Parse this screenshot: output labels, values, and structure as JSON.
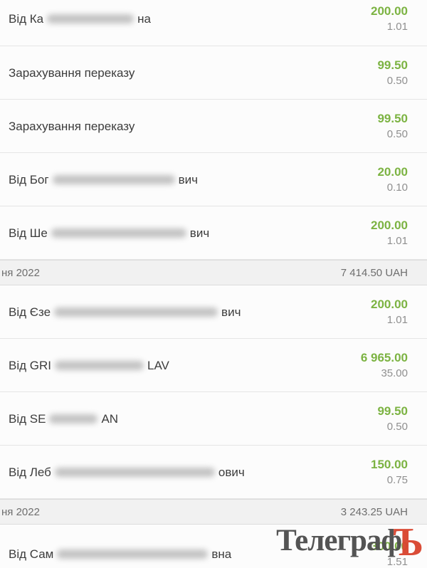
{
  "colors": {
    "amount_green": "#7cb342",
    "fee_gray": "#8f8f8f",
    "group_bg": "#f1f1f1",
    "watermark_gray": "#4e4e4e",
    "watermark_red": "#d9452f"
  },
  "rows": [
    {
      "type": "txn",
      "prefix": "Від Ка",
      "redacted": true,
      "blur_width": 122,
      "suffix": "на",
      "amount": "200.00",
      "fee": "1.01"
    },
    {
      "type": "txn",
      "prefix": "Зарахування переказу",
      "redacted": false,
      "blur_width": 0,
      "suffix": "",
      "amount": "99.50",
      "fee": "0.50"
    },
    {
      "type": "txn",
      "prefix": "Зарахування переказу",
      "redacted": false,
      "blur_width": 0,
      "suffix": "",
      "amount": "99.50",
      "fee": "0.50"
    },
    {
      "type": "txn",
      "prefix": "Від Бог",
      "redacted": true,
      "blur_width": 172,
      "suffix": "вич",
      "amount": "20.00",
      "fee": "0.10"
    },
    {
      "type": "txn",
      "prefix": "Від Ше",
      "redacted": true,
      "blur_width": 190,
      "suffix": "вич",
      "amount": "200.00",
      "fee": "1.01"
    },
    {
      "type": "group",
      "date": "ня 2022",
      "total": "7 414.50 UAH"
    },
    {
      "type": "txn",
      "prefix": "Від Єзе",
      "redacted": true,
      "blur_width": 230,
      "suffix": "вич",
      "amount": "200.00",
      "fee": "1.01"
    },
    {
      "type": "txn",
      "prefix": "Від GRI",
      "redacted": true,
      "blur_width": 125,
      "suffix": "LAV",
      "amount": "6 965.00",
      "fee": "35.00"
    },
    {
      "type": "txn",
      "prefix": "Від SE",
      "redacted": true,
      "blur_width": 68,
      "suffix": "AN",
      "amount": "99.50",
      "fee": "0.50"
    },
    {
      "type": "txn",
      "prefix": "Від Леб",
      "redacted": true,
      "blur_width": 225,
      "suffix": "ович",
      "amount": "150.00",
      "fee": "0.75"
    },
    {
      "type": "group",
      "date": "ня 2022",
      "total": "3 243.25 UAH"
    },
    {
      "type": "txn",
      "prefix": "Від Сам",
      "redacted": true,
      "blur_width": 212,
      "suffix": "вна",
      "amount": "300.00",
      "fee": "1.51"
    }
  ],
  "watermark": {
    "main": "Телеграф",
    "accent": "Ъ"
  }
}
